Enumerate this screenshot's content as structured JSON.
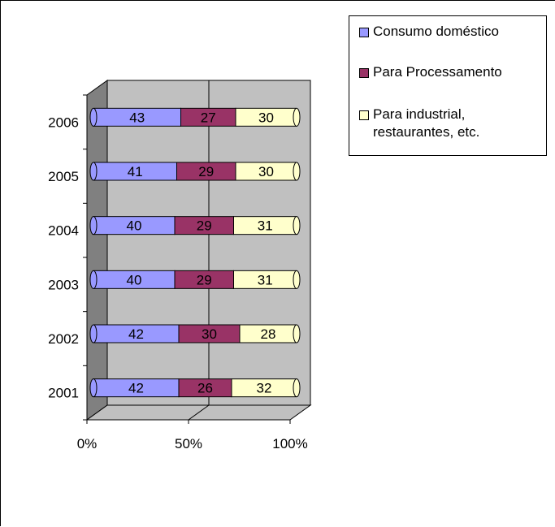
{
  "chart_data": {
    "type": "bar",
    "orientation": "horizontal",
    "stacked": "percent",
    "three_d": true,
    "categories": [
      "2001",
      "2002",
      "2003",
      "2004",
      "2005",
      "2006"
    ],
    "series": [
      {
        "name": "Consumo doméstico",
        "values": [
          42,
          42,
          40,
          40,
          41,
          43
        ],
        "color": "#9999ff"
      },
      {
        "name": "Para Processamento",
        "values": [
          26,
          30,
          29,
          29,
          29,
          27
        ],
        "color": "#993366"
      },
      {
        "name": "Para industrial,\nrestaurantes, etc.",
        "values": [
          32,
          28,
          31,
          31,
          30,
          30
        ],
        "color": "#ffffcc"
      }
    ],
    "xticks": [
      "0%",
      "50%",
      "100%"
    ],
    "xlim": [
      0,
      100
    ],
    "data_labels": true,
    "grid": true,
    "legend_position": "top-right",
    "wall_color": "#c0c0c0",
    "side_wall_color": "#808080"
  }
}
